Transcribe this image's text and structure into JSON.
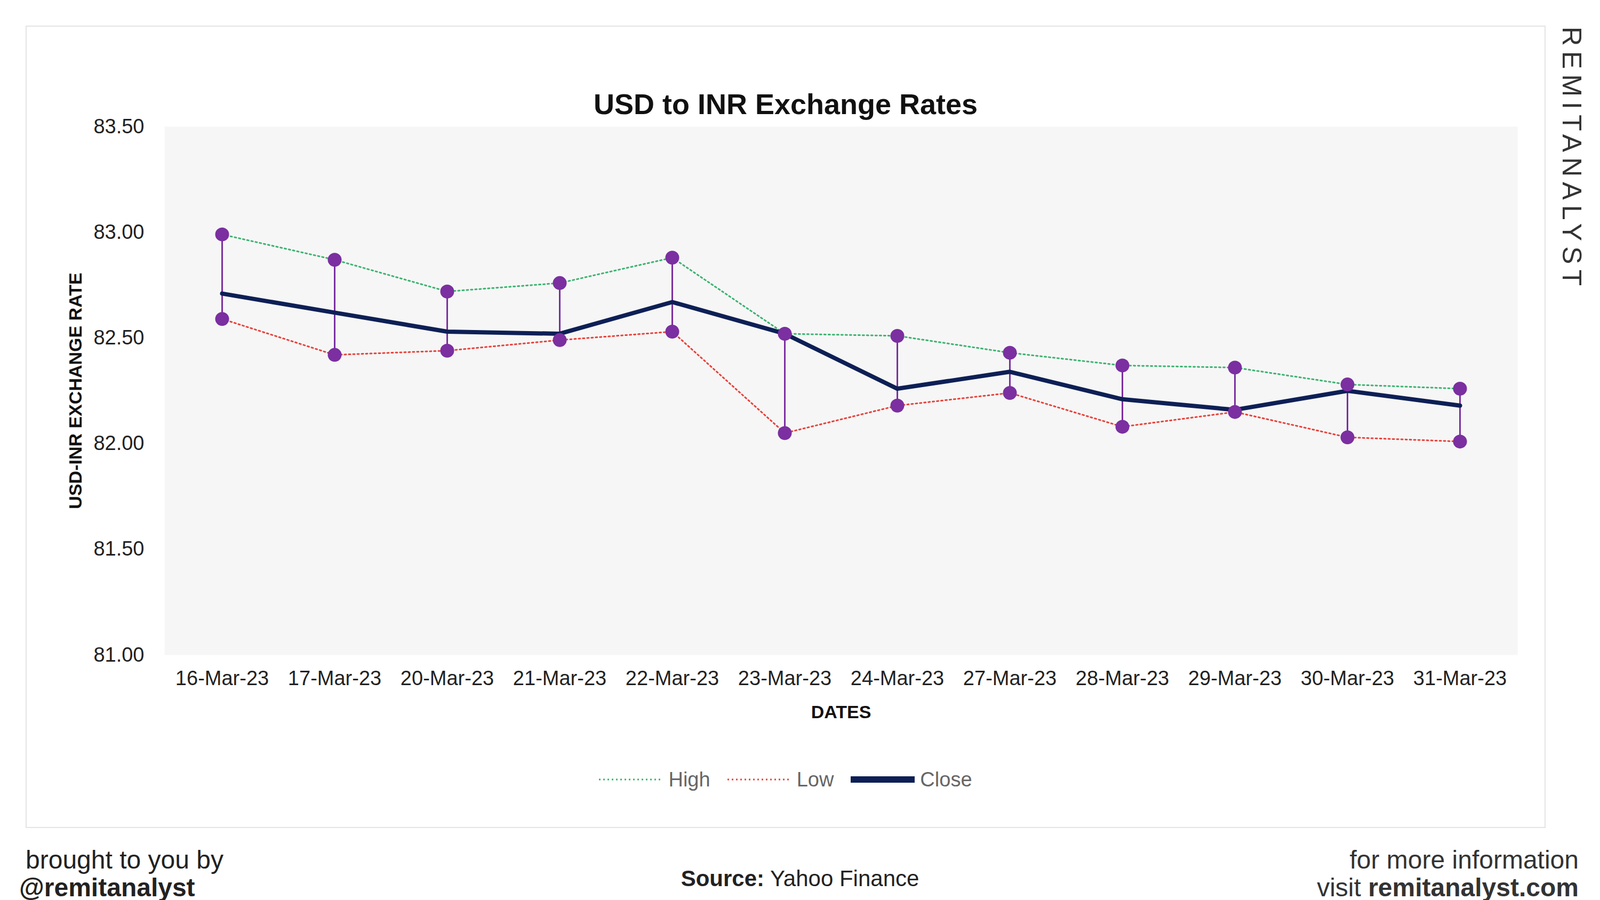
{
  "chart_data": {
    "type": "line",
    "title": "USD to INR Exchange Rates",
    "x_label": "DATES",
    "y_label": "USD-INR EXCHANGE RATE",
    "categories": [
      "16-Mar-23",
      "17-Mar-23",
      "20-Mar-23",
      "21-Mar-23",
      "22-Mar-23",
      "23-Mar-23",
      "24-Mar-23",
      "27-Mar-23",
      "28-Mar-23",
      "29-Mar-23",
      "30-Mar-23",
      "31-Mar-23"
    ],
    "series": [
      {
        "name": "High",
        "color": "#3cb371",
        "line_style": "dotted",
        "marker": "circle",
        "values": [
          82.99,
          82.87,
          82.72,
          82.76,
          82.88,
          82.52,
          82.51,
          82.43,
          82.37,
          82.36,
          82.28,
          82.26
        ]
      },
      {
        "name": "Low",
        "color": "#e8423b",
        "line_style": "dotted",
        "marker": "circle",
        "values": [
          82.59,
          82.42,
          82.44,
          82.49,
          82.53,
          82.05,
          82.18,
          82.24,
          82.08,
          82.15,
          82.03,
          82.01
        ]
      },
      {
        "name": "Close",
        "color": "#0d1f55",
        "line_style": "solid",
        "marker": "none",
        "values": [
          82.71,
          82.62,
          82.53,
          82.52,
          82.67,
          82.52,
          82.26,
          82.34,
          82.21,
          82.16,
          82.25,
          82.18
        ]
      }
    ],
    "ylim": [
      81,
      83.5
    ],
    "yticks": [
      {
        "value": 81,
        "label": "81.00"
      },
      {
        "value": 81.5,
        "label": "81.50"
      },
      {
        "value": 82,
        "label": "82.00"
      },
      {
        "value": 82.5,
        "label": "82.50"
      },
      {
        "value": 83,
        "label": "83.00"
      },
      {
        "value": 83.5,
        "label": "83.50"
      }
    ],
    "grid": false,
    "legend": "bottom",
    "watermark": "REMITANALYST",
    "credit": [
      "brought to you by",
      "@remitanalyst"
    ],
    "source": [
      "Source:",
      "Yahoo Finance"
    ],
    "more_info": [
      "for more information",
      "visit",
      "remitanalyst.com"
    ]
  }
}
